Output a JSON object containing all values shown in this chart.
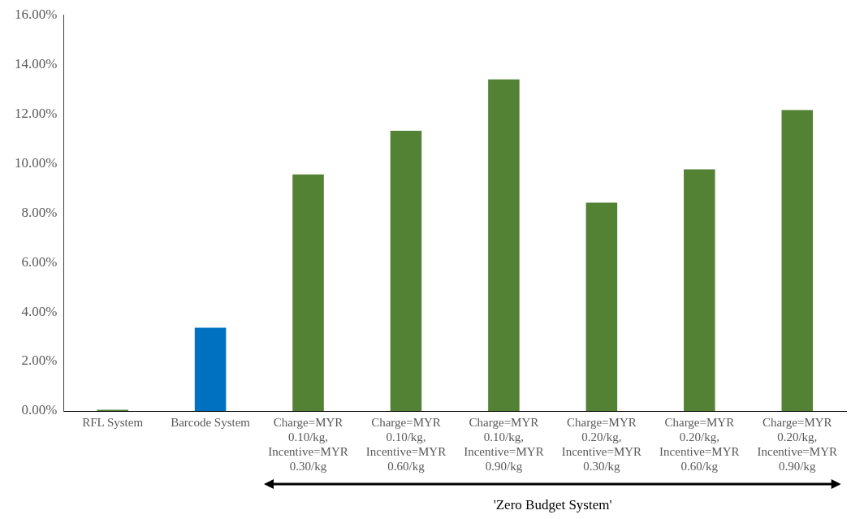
{
  "chart_data": {
    "type": "bar",
    "categories": [
      "RFL System",
      "Barcode System",
      "Charge=MYR\n0.10/kg,\nIncentive=MYR\n0.30/kg",
      "Charge=MYR\n0.10/kg,\nIncentive=MYR\n0.60/kg",
      "Charge=MYR\n0.10/kg,\nIncentive=MYR\n0.90/kg",
      "Charge=MYR\n0.20/kg,\nIncentive=MYR\n0.30/kg",
      "Charge=MYR\n0.20/kg,\nIncentive=MYR\n0.60/kg",
      "Charge=MYR\n0.20/kg,\nIncentive=MYR\n0.90/kg"
    ],
    "values": [
      0.05,
      3.36,
      9.55,
      11.32,
      13.39,
      8.41,
      9.76,
      12.15
    ],
    "colors": [
      "#548235",
      "#0070c0",
      "#548235",
      "#548235",
      "#548235",
      "#548235",
      "#548235",
      "#548235"
    ],
    "ylim": [
      0,
      16
    ],
    "yticks": [
      {
        "value": 0,
        "label": "0.00%"
      },
      {
        "value": 2,
        "label": "2.00%"
      },
      {
        "value": 4,
        "label": "4.00%"
      },
      {
        "value": 6,
        "label": "6.00%"
      },
      {
        "value": 8,
        "label": "8.00%"
      },
      {
        "value": 10,
        "label": "10.00%"
      },
      {
        "value": 12,
        "label": "12.00%"
      },
      {
        "value": 14,
        "label": "14.00%"
      },
      {
        "value": 16,
        "label": "16.00%"
      }
    ],
    "annotations": [
      "'Zero Budget System'"
    ],
    "grid": false,
    "legend": false
  }
}
